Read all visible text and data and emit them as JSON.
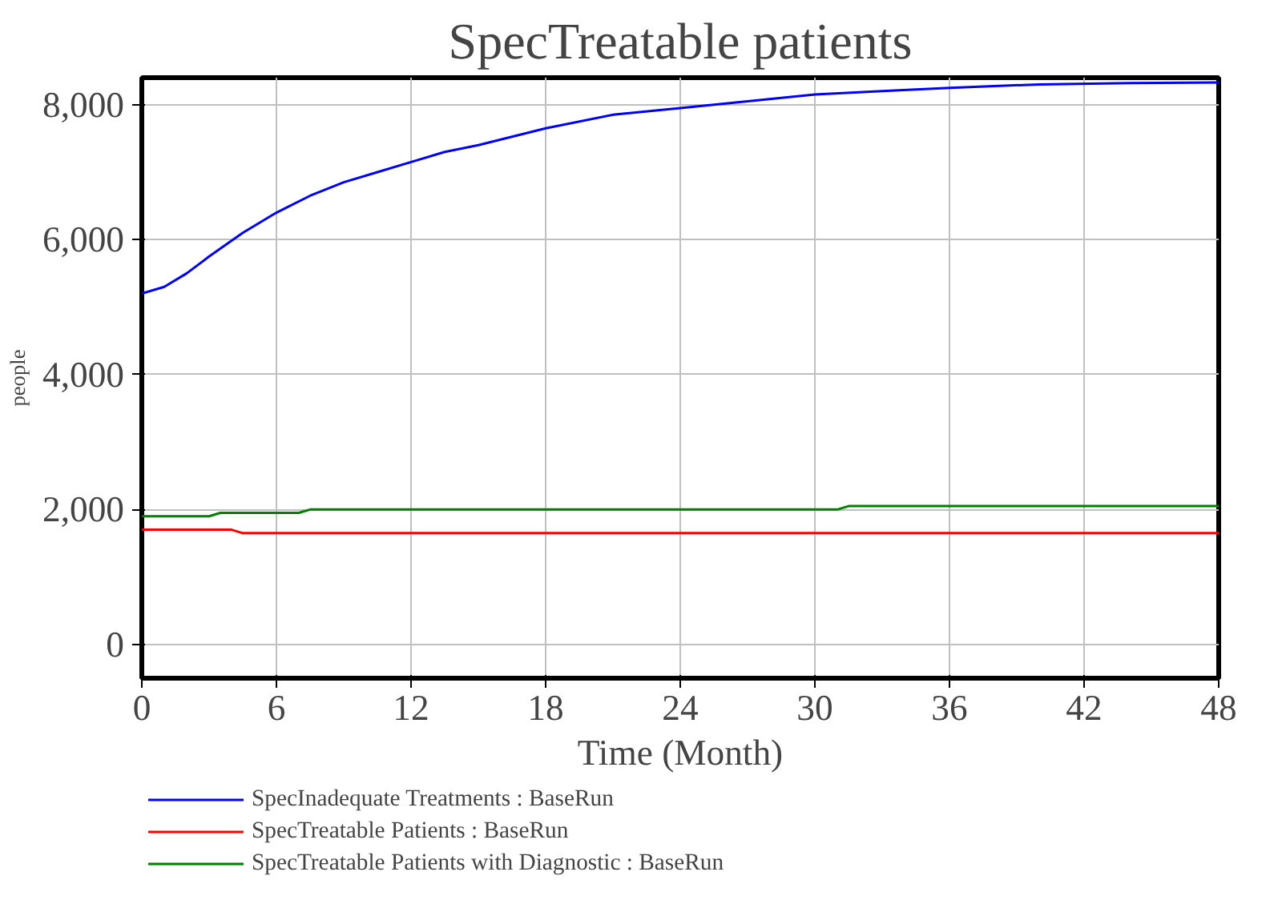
{
  "chart_data": {
    "type": "line",
    "title": "SpecTreatable patients",
    "xlabel": "Time (Month)",
    "ylabel": "people",
    "xlim": [
      0,
      48
    ],
    "xticks": [
      0,
      6,
      12,
      18,
      24,
      30,
      36,
      42,
      48
    ],
    "ylim": [
      -500,
      8400
    ],
    "yticks": [
      {
        "value": 0,
        "label": "0"
      },
      {
        "value": 2000,
        "label": "2,000"
      },
      {
        "value": 4000,
        "label": "4,000"
      },
      {
        "value": 6000,
        "label": "6,000"
      },
      {
        "value": 8000,
        "label": "8,000"
      }
    ],
    "grid": true,
    "legend": "bottom",
    "series": [
      {
        "name": "SpecInadequate Treatments : BaseRun",
        "color": "#0000ff",
        "x": [
          0,
          1,
          2,
          3,
          4.5,
          6,
          7.5,
          9,
          10.5,
          12,
          13.5,
          15,
          18,
          21,
          24,
          27,
          30,
          33,
          36,
          40,
          44,
          48
        ],
        "values": [
          5200,
          5300,
          5500,
          5750,
          6100,
          6400,
          6650,
          6850,
          7000,
          7150,
          7300,
          7400,
          7650,
          7850,
          7950,
          8050,
          8150,
          8200,
          8250,
          8300,
          8320,
          8330
        ]
      },
      {
        "name": "SpecTreatable Patients : BaseRun",
        "color": "#ff0000",
        "x": [
          0,
          4,
          4.5,
          48
        ],
        "values": [
          1700,
          1700,
          1650,
          1650
        ]
      },
      {
        "name": "SpecTreatable Patients with Diagnostic : BaseRun",
        "color": "#008000",
        "x": [
          0,
          3,
          3.5,
          7,
          7.5,
          31,
          31.5,
          48
        ],
        "values": [
          1900,
          1900,
          1950,
          1950,
          2000,
          2000,
          2050,
          2050
        ]
      }
    ]
  }
}
